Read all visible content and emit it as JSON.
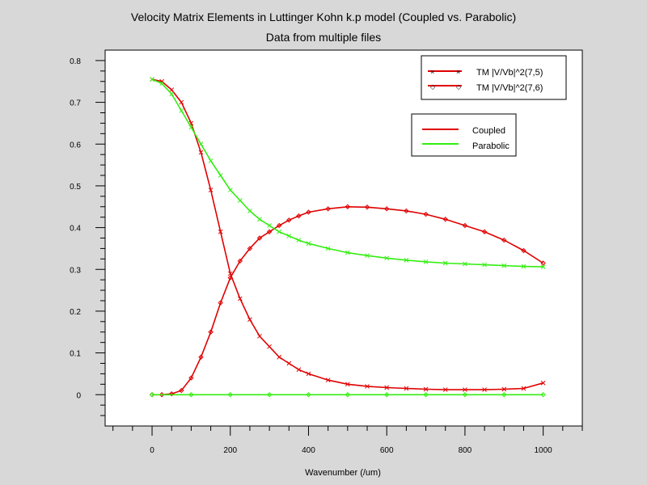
{
  "chart_data": {
    "type": "line",
    "title": "Velocity Matrix Elements in Luttinger Kohn k.p model (Coupled vs. Parabolic)",
    "subtitle": "Data from multiple files",
    "xlabel": "Wavenumber (/um)",
    "ylabel": "",
    "xlim": [
      -120,
      1100
    ],
    "ylim": [
      -0.075,
      0.825
    ],
    "xticks": [
      0,
      200,
      400,
      600,
      800,
      1000
    ],
    "yticks": [
      0,
      0.1,
      0.2,
      0.3,
      0.4,
      0.5,
      0.6,
      0.7,
      0.8
    ],
    "ytick_labels": [
      "0",
      "0.1",
      "0.2",
      "0.3",
      "0.4",
      "0.5",
      "0.6",
      "0.7",
      "0.8"
    ],
    "grid": false,
    "colors": {
      "coupled": "#e00000",
      "parabolic": "#33ee11"
    },
    "legends": [
      {
        "placement": "top-right",
        "entries": [
          {
            "label": "TM |V/Vb|^2(7,5)",
            "marker": "x"
          },
          {
            "label": "TM |V/Vb|^2(7,6)",
            "marker": "diamond"
          }
        ]
      },
      {
        "placement": "right",
        "entries": [
          {
            "label": "Coupled",
            "color": "#e00000"
          },
          {
            "label": "Parabolic",
            "color": "#33ee11"
          }
        ]
      }
    ],
    "series": [
      {
        "group": "coupled",
        "marker": "x",
        "x": [
          0,
          25,
          50,
          75,
          100,
          125,
          150,
          175,
          200,
          225,
          250,
          275,
          300,
          325,
          350,
          375,
          400,
          450,
          500,
          550,
          600,
          650,
          700,
          750,
          800,
          850,
          900,
          950,
          1000
        ],
        "y": [
          0.755,
          0.75,
          0.73,
          0.7,
          0.65,
          0.58,
          0.49,
          0.39,
          0.29,
          0.23,
          0.18,
          0.14,
          0.115,
          0.09,
          0.075,
          0.06,
          0.05,
          0.035,
          0.025,
          0.02,
          0.017,
          0.015,
          0.013,
          0.012,
          0.012,
          0.012,
          0.013,
          0.015,
          0.028
        ]
      },
      {
        "group": "coupled",
        "marker": "diamond",
        "x": [
          0,
          25,
          50,
          75,
          100,
          125,
          150,
          175,
          200,
          225,
          250,
          275,
          300,
          325,
          350,
          375,
          400,
          450,
          500,
          550,
          600,
          650,
          700,
          750,
          800,
          850,
          900,
          950,
          1000
        ],
        "y": [
          0,
          0,
          0.002,
          0.01,
          0.04,
          0.09,
          0.15,
          0.22,
          0.28,
          0.32,
          0.35,
          0.375,
          0.39,
          0.405,
          0.418,
          0.428,
          0.437,
          0.445,
          0.45,
          0.449,
          0.445,
          0.44,
          0.432,
          0.42,
          0.405,
          0.39,
          0.37,
          0.345,
          0.315
        ]
      },
      {
        "group": "parabolic",
        "marker": "x",
        "x": [
          0,
          25,
          50,
          75,
          100,
          125,
          150,
          175,
          200,
          225,
          250,
          275,
          300,
          325,
          350,
          375,
          400,
          450,
          500,
          550,
          600,
          650,
          700,
          750,
          800,
          850,
          900,
          950,
          1000
        ],
        "y": [
          0.755,
          0.745,
          0.72,
          0.68,
          0.64,
          0.6,
          0.56,
          0.525,
          0.49,
          0.465,
          0.44,
          0.42,
          0.405,
          0.39,
          0.38,
          0.37,
          0.362,
          0.35,
          0.34,
          0.333,
          0.327,
          0.322,
          0.318,
          0.315,
          0.313,
          0.311,
          0.309,
          0.307,
          0.306
        ]
      },
      {
        "group": "parabolic",
        "marker": "diamond",
        "x": [
          0,
          100,
          200,
          300,
          400,
          500,
          600,
          700,
          800,
          900,
          1000
        ],
        "y": [
          0,
          0,
          0,
          0,
          0,
          0,
          0,
          0,
          0,
          0,
          0
        ]
      }
    ]
  }
}
